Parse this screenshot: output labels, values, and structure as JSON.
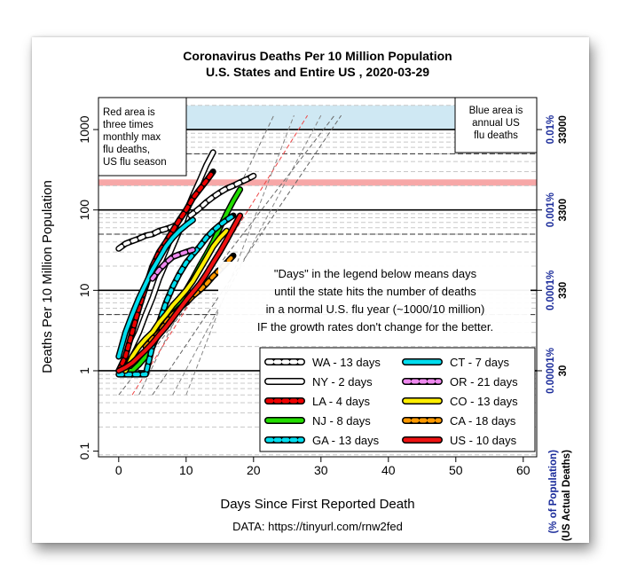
{
  "chart_data": {
    "type": "line",
    "title": "Coronavirus Deaths Per 10 Million Population",
    "subtitle": "U.S. States and Entire US , 2020-03-29",
    "xlabel": "Days Since First Reported Death",
    "ylabel": "Deaths Per 10 Million Population",
    "right_label_inner": "(% of Population)",
    "right_label_outer": "(US Actual Deaths)",
    "source": "DATA: https://tinyurl.com/rnw2fed",
    "xlim": [
      0,
      60
    ],
    "ylim": [
      0.1,
      2000
    ],
    "y_log_scale": true,
    "x_ticks": [
      "0",
      "10",
      "20",
      "30",
      "40",
      "50",
      "60"
    ],
    "y_ticks": [
      {
        "value": 0.1,
        "label": "0.1"
      },
      {
        "value": 1,
        "label": "1"
      },
      {
        "value": 10,
        "label": "10"
      },
      {
        "value": 100,
        "label": "100"
      },
      {
        "value": 1000,
        "label": "1000"
      }
    ],
    "right_ticks_pct": [
      {
        "value": 1,
        "label": "0.00001%"
      },
      {
        "value": 10,
        "label": "0.0001%"
      },
      {
        "value": 100,
        "label": "0.001%"
      },
      {
        "value": 1000,
        "label": "0.01%"
      }
    ],
    "right_ticks_deaths": [
      {
        "value": 1,
        "label": "30"
      },
      {
        "value": 10,
        "label": "330"
      },
      {
        "value": 100,
        "label": "3300"
      },
      {
        "value": 1000,
        "label": "33000"
      }
    ],
    "red_band": [
      200,
      240
    ],
    "blue_band": [
      1000,
      2000
    ],
    "red_band_note": [
      "Red area is",
      "three times",
      "monthly max",
      "flu deaths,",
      "US flu season"
    ],
    "blue_band_note": [
      "Blue area is",
      "annual US",
      "flu deaths"
    ],
    "annotation": [
      "\"Days\" in the legend below means days",
      "until the state hits the number of deaths",
      "in a normal U.S. flu year (~1000/10 million)",
      "IF the growth rates don't change for the better."
    ],
    "series": [
      {
        "name": "WA - 13 days",
        "color": "#ffffff",
        "casing": "#000000",
        "dash": true,
        "x": [
          0,
          1,
          2,
          3,
          4,
          5,
          6,
          7,
          8,
          9,
          10,
          11,
          12,
          13,
          14,
          15,
          16,
          17,
          18,
          19,
          20
        ],
        "y": [
          33,
          38,
          41,
          44,
          48,
          50,
          55,
          58,
          62,
          68,
          78,
          90,
          105,
          125,
          145,
          165,
          185,
          200,
          220,
          240,
          265
        ]
      },
      {
        "name": "NY - 2 days",
        "color": "#ffffff",
        "casing": "#000000",
        "dash": false,
        "x": [
          0,
          1,
          2,
          3,
          4,
          5,
          6,
          7,
          8,
          9,
          10,
          11,
          12,
          13,
          14
        ],
        "y": [
          1,
          1.4,
          2,
          3,
          5,
          8,
          14,
          22,
          35,
          55,
          95,
          150,
          230,
          360,
          520
        ]
      },
      {
        "name": "LA - 4 days",
        "color": "#ee0000",
        "casing": "#000000",
        "dash": true,
        "x": [
          0,
          1,
          2,
          3,
          4,
          5,
          6,
          7,
          8,
          9,
          10,
          11,
          12,
          13,
          14
        ],
        "y": [
          1,
          1.5,
          3,
          6,
          11,
          20,
          30,
          40,
          55,
          75,
          100,
          140,
          180,
          230,
          300
        ]
      },
      {
        "name": "NJ - 8 days",
        "color": "#22dd00",
        "casing": "#000000",
        "dash": false,
        "x": [
          0,
          1,
          2,
          3,
          4,
          5,
          6,
          7,
          8,
          9,
          10,
          11,
          12,
          13,
          14,
          15,
          16,
          17,
          18
        ],
        "y": [
          1,
          1,
          1,
          1.2,
          1.5,
          2,
          3,
          4,
          5.5,
          7,
          10,
          14,
          20,
          28,
          40,
          60,
          90,
          130,
          180
        ]
      },
      {
        "name": "GA - 13 days",
        "color": "#00ddee",
        "casing": "#000000",
        "dash": true,
        "x": [
          0,
          1,
          2,
          3,
          4,
          5,
          6,
          7,
          8,
          9,
          10,
          11,
          12,
          13,
          14,
          15,
          16,
          17
        ],
        "y": [
          0.9,
          0.9,
          0.9,
          0.9,
          0.9,
          2,
          4,
          7,
          11,
          16,
          22,
          28,
          35,
          45,
          55,
          65,
          75,
          85
        ]
      },
      {
        "name": "CT - 7 days",
        "color": "#00ddee",
        "casing": "#000000",
        "dash": false,
        "x": [
          0,
          1,
          2,
          3,
          4,
          5,
          6,
          7,
          8,
          9,
          10,
          11
        ],
        "y": [
          1.5,
          3,
          5,
          8,
          12,
          18,
          25,
          35,
          45,
          55,
          65,
          75
        ]
      },
      {
        "name": "OR - 21 days",
        "color": "#ee88ee",
        "casing": "#000000",
        "dash": true,
        "x": [
          5,
          6,
          7,
          8,
          9,
          10,
          11
        ],
        "y": [
          14,
          18,
          22,
          26,
          28,
          30,
          32
        ]
      },
      {
        "name": "CO - 13 days",
        "color": "#ffee00",
        "casing": "#000000",
        "dash": false,
        "x": [
          1,
          2,
          3,
          4,
          5,
          6,
          7,
          8,
          9,
          10,
          11,
          12,
          13,
          14,
          15,
          16
        ],
        "y": [
          1,
          1.5,
          2,
          2.5,
          3,
          4,
          5,
          6.5,
          8,
          10,
          13,
          18,
          25,
          35,
          45,
          55
        ]
      },
      {
        "name": "CA - 18 days",
        "color": "#ff9900",
        "casing": "#000000",
        "dash": true,
        "x": [
          4,
          5,
          6,
          7,
          8,
          9,
          10,
          11,
          12,
          13,
          14,
          15,
          16,
          17
        ],
        "y": [
          2,
          2.5,
          3,
          4,
          5,
          6,
          7,
          8.5,
          10,
          12,
          15,
          18,
          22,
          27
        ]
      },
      {
        "name": "US - 10 days",
        "color": "#ee1111",
        "casing": "#000000",
        "dash": false,
        "x": [
          0,
          1,
          2,
          3,
          4,
          5,
          6,
          7,
          8,
          9,
          10,
          11,
          12,
          13,
          14,
          15,
          16,
          17,
          18
        ],
        "y": [
          1,
          1.1,
          1.25,
          1.5,
          1.8,
          2.2,
          2.8,
          3.5,
          4.5,
          5.8,
          7.5,
          9.5,
          12,
          16,
          22,
          30,
          42,
          60,
          85
        ]
      }
    ],
    "legend_columns": [
      [
        "WA - 13 days",
        "NY - 2 days",
        "LA - 4 days",
        "NJ - 8 days",
        "GA - 13 days"
      ],
      [
        "CT - 7 days",
        "OR - 21 days",
        "CO - 13 days",
        "CA - 18 days",
        "US - 10 days"
      ]
    ],
    "grid": true,
    "legend_position": "bottom-right"
  }
}
